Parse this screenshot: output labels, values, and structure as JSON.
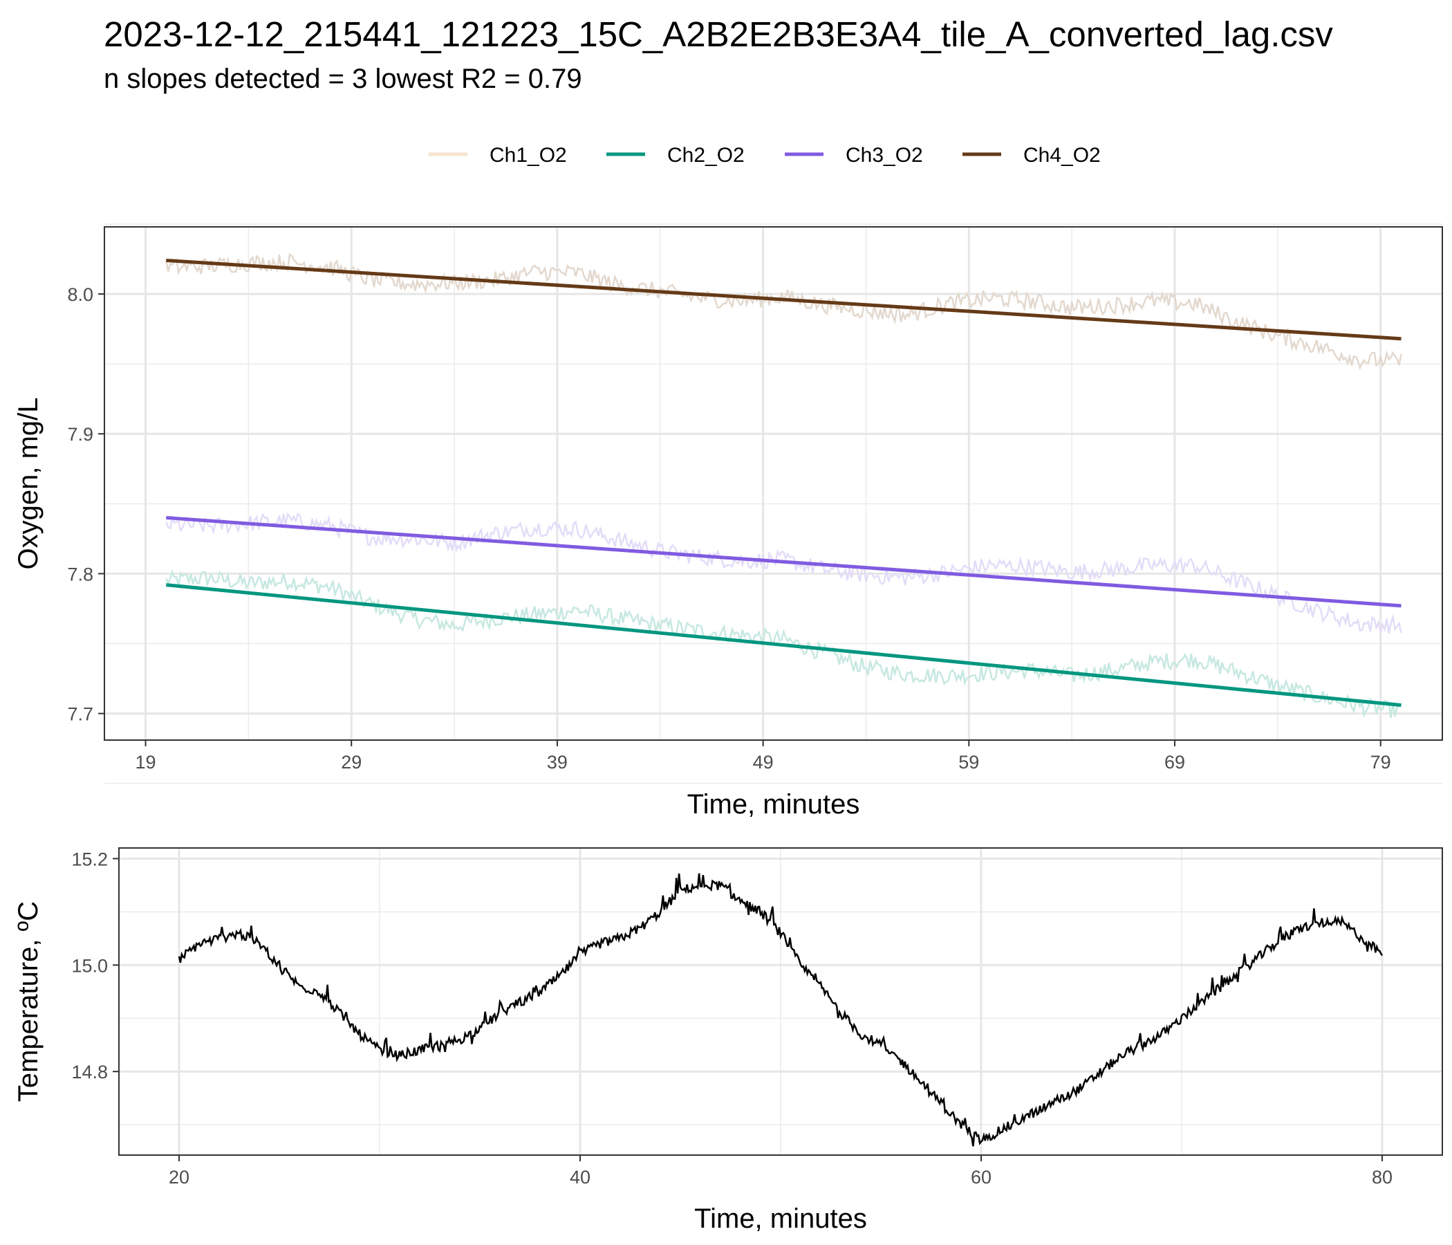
{
  "title": "2023-12-12_215441_121223_15C_A2B2E2B3E3A4_tile_A_converted_lag.csv",
  "subtitle": "n slopes detected = 3  lowest R2 = 0.79",
  "chart_data": [
    {
      "type": "line",
      "name": "oxygen",
      "xlabel": "Time, minutes",
      "ylabel": "Oxygen, mg/L",
      "xlim": [
        17,
        82
      ],
      "ylim": [
        7.681,
        8.048
      ],
      "xticks": [
        19,
        29,
        39,
        49,
        59,
        69,
        79
      ],
      "xtick_labels": [
        "19",
        "29",
        "39",
        "49",
        "59",
        "69",
        "79"
      ],
      "yticks": [
        7.7,
        7.8,
        7.9,
        8.0
      ],
      "ytick_labels": [
        "7.7",
        "7.8",
        "7.9",
        "8.0"
      ],
      "grid": true,
      "legend_position": "top",
      "legend": [
        {
          "name": "Ch1_O2",
          "color": "#F7E4CC"
        },
        {
          "name": "Ch2_O2",
          "color": "#009680"
        },
        {
          "name": "Ch3_O2",
          "color": "#805BE0"
        },
        {
          "name": "Ch4_O2",
          "color": "#653A17"
        }
      ],
      "series": [
        {
          "name": "Ch2_O2",
          "kind": "raw",
          "color": "#c6e8e0",
          "x": [
            20,
            22,
            24,
            26,
            28,
            30,
            32,
            34,
            36,
            38,
            40,
            42,
            44,
            46,
            48,
            50,
            52,
            54,
            56,
            58,
            60,
            62,
            64,
            66,
            68,
            70,
            72,
            74,
            76,
            78,
            80
          ],
          "y": [
            7.795,
            7.797,
            7.793,
            7.795,
            7.79,
            7.778,
            7.768,
            7.763,
            7.768,
            7.771,
            7.774,
            7.768,
            7.763,
            7.759,
            7.756,
            7.753,
            7.743,
            7.733,
            7.728,
            7.727,
            7.729,
            7.731,
            7.727,
            7.731,
            7.737,
            7.739,
            7.73,
            7.72,
            7.712,
            7.705,
            7.702
          ]
        },
        {
          "name": "Ch2_O2",
          "kind": "fit",
          "color": "#009680",
          "x": [
            20,
            80
          ],
          "y": [
            7.792,
            7.706
          ]
        },
        {
          "name": "Ch3_O2",
          "kind": "raw",
          "color": "#e3dcf8",
          "x": [
            20,
            22,
            24,
            26,
            28,
            30,
            32,
            34,
            36,
            38,
            40,
            42,
            44,
            46,
            48,
            50,
            52,
            54,
            56,
            58,
            60,
            62,
            64,
            66,
            68,
            70,
            72,
            74,
            76,
            78,
            80
          ],
          "y": [
            7.835,
            7.834,
            7.836,
            7.838,
            7.834,
            7.826,
            7.825,
            7.822,
            7.829,
            7.833,
            7.832,
            7.824,
            7.816,
            7.812,
            7.809,
            7.81,
            7.803,
            7.799,
            7.797,
            7.801,
            7.806,
            7.805,
            7.801,
            7.803,
            7.806,
            7.806,
            7.795,
            7.784,
            7.773,
            7.764,
            7.763
          ]
        },
        {
          "name": "Ch3_O2",
          "kind": "fit",
          "color": "#805BE0",
          "x": [
            20,
            80
          ],
          "y": [
            7.84,
            7.777
          ]
        },
        {
          "name": "Ch4_O2",
          "kind": "raw",
          "color": "#e3d8ce",
          "x": [
            20,
            22,
            24,
            26,
            28,
            30,
            32,
            34,
            36,
            38,
            40,
            42,
            44,
            46,
            48,
            50,
            52,
            54,
            56,
            58,
            60,
            62,
            64,
            66,
            68,
            70,
            72,
            74,
            76,
            78,
            80
          ],
          "y": [
            8.019,
            8.02,
            8.022,
            8.023,
            8.019,
            8.01,
            8.007,
            8.008,
            8.01,
            8.016,
            8.015,
            8.006,
            8.002,
            7.997,
            7.995,
            7.998,
            7.992,
            7.988,
            7.985,
            7.993,
            7.997,
            7.995,
            7.99,
            7.992,
            7.995,
            7.993,
            7.98,
            7.97,
            7.962,
            7.953,
            7.952
          ]
        },
        {
          "name": "Ch4_O2",
          "kind": "fit",
          "color": "#653A17",
          "x": [
            20,
            80
          ],
          "y": [
            8.024,
            7.968
          ]
        }
      ]
    },
    {
      "type": "line",
      "name": "temperature",
      "xlabel": "Time, minutes",
      "ylabel": "Temperature, ºC",
      "xlim": [
        17,
        83
      ],
      "ylim": [
        14.643,
        15.22
      ],
      "xticks": [
        20,
        40,
        60,
        80
      ],
      "xtick_labels": [
        "20",
        "40",
        "60",
        "80"
      ],
      "yticks": [
        14.8,
        15.0,
        15.2
      ],
      "ytick_labels": [
        "14.8",
        "15.0",
        "15.2"
      ],
      "grid": true,
      "series": [
        {
          "name": "Temperature",
          "color": "#000000",
          "x": [
            20,
            21,
            22,
            23,
            24,
            25,
            26,
            27,
            28,
            29,
            30,
            31,
            32,
            33,
            34,
            35,
            36,
            37,
            38,
            39,
            40,
            41,
            42,
            43,
            44,
            45,
            46,
            47,
            48,
            49,
            50,
            51,
            52,
            53,
            54,
            55,
            56,
            57,
            58,
            59,
            60,
            61,
            62,
            63,
            64,
            65,
            66,
            67,
            68,
            69,
            70,
            71,
            72,
            73,
            74,
            75,
            76,
            77,
            78,
            79,
            80
          ],
          "y": [
            15.01,
            15.04,
            15.05,
            15.06,
            15.04,
            15.0,
            14.96,
            14.95,
            14.91,
            14.87,
            14.84,
            14.83,
            14.84,
            14.85,
            14.86,
            14.88,
            14.91,
            14.93,
            14.95,
            14.98,
            15.02,
            15.04,
            15.05,
            15.07,
            15.1,
            15.14,
            15.15,
            15.15,
            15.12,
            15.1,
            15.06,
            15.0,
            14.96,
            14.91,
            14.87,
            14.85,
            14.82,
            14.78,
            14.74,
            14.7,
            14.67,
            14.69,
            14.71,
            14.73,
            14.75,
            14.77,
            14.8,
            14.83,
            14.85,
            14.87,
            14.9,
            14.93,
            14.96,
            14.99,
            15.02,
            15.05,
            15.07,
            15.08,
            15.08,
            15.05,
            15.02
          ]
        }
      ]
    }
  ]
}
